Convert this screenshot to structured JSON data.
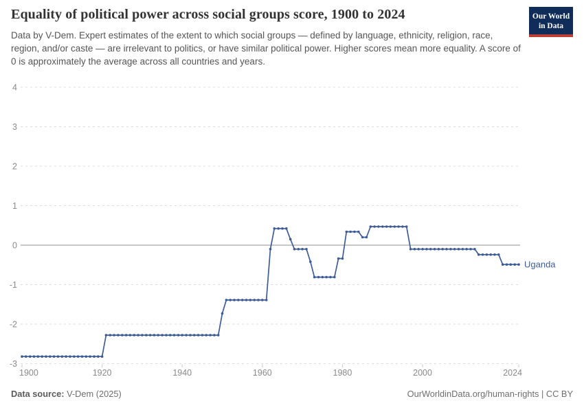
{
  "header": {
    "title": "Equality of political power across social groups score, 1900 to 2024",
    "subtitle": "Data by V-Dem. Expert estimates of the extent to which social groups — defined by language, ethnicity, religion, race, region, and/or caste — are irrelevant to politics, or have similar political power. Higher scores mean more equality. A score of 0 is approximately the average across all countries and years.",
    "logo": {
      "line1": "Our World",
      "line2": "in Data"
    }
  },
  "colors": {
    "line": "#3d5c97",
    "logo_bg": "#102d59",
    "logo_red": "#bc3f34",
    "grid": "#dcdcdc",
    "zero_line": "#8f8f8f",
    "axis_text": "#8a8a8a",
    "tick_mark": "#c9c9c9"
  },
  "chart_data": {
    "type": "line",
    "title": "Equality of political power across social groups score, 1900 to 2024",
    "entity": "Uganda",
    "xlabel": "",
    "ylabel": "",
    "xlim": [
      1900,
      2024
    ],
    "ylim": [
      -3,
      4
    ],
    "x_ticks": [
      1900,
      1920,
      1940,
      1960,
      1980,
      2000,
      2024
    ],
    "y_ticks": [
      4,
      3,
      2,
      1,
      0,
      -1,
      -2,
      -3
    ],
    "grid": "horizontal dashed, solid line at 0",
    "legend_position": "end-of-line label",
    "points_are_annual": true,
    "segments": [
      {
        "from": 1900,
        "to": 1920,
        "value": -2.82
      },
      {
        "from": 1921,
        "to": 1949,
        "value": -2.28
      },
      {
        "from": 1950,
        "to": 1950,
        "value": -1.73
      },
      {
        "from": 1951,
        "to": 1961,
        "value": -1.39
      },
      {
        "from": 1962,
        "to": 1962,
        "value": -0.1
      },
      {
        "from": 1963,
        "to": 1966,
        "value": 0.42
      },
      {
        "from": 1967,
        "to": 1967,
        "value": 0.15
      },
      {
        "from": 1968,
        "to": 1971,
        "value": -0.1
      },
      {
        "from": 1972,
        "to": 1972,
        "value": -0.42
      },
      {
        "from": 1973,
        "to": 1978,
        "value": -0.81
      },
      {
        "from": 1979,
        "to": 1980,
        "value": -0.34
      },
      {
        "from": 1981,
        "to": 1984,
        "value": 0.34
      },
      {
        "from": 1985,
        "to": 1986,
        "value": 0.2
      },
      {
        "from": 1987,
        "to": 1996,
        "value": 0.47
      },
      {
        "from": 1997,
        "to": 2013,
        "value": -0.1
      },
      {
        "from": 2014,
        "to": 2019,
        "value": -0.24
      },
      {
        "from": 2020,
        "to": 2024,
        "value": -0.49
      }
    ]
  },
  "footer": {
    "source_label": "Data source:",
    "source_value": "V-Dem (2025)",
    "url": "OurWorldinData.org/human-rights",
    "separator": "|",
    "license": "CC BY"
  }
}
